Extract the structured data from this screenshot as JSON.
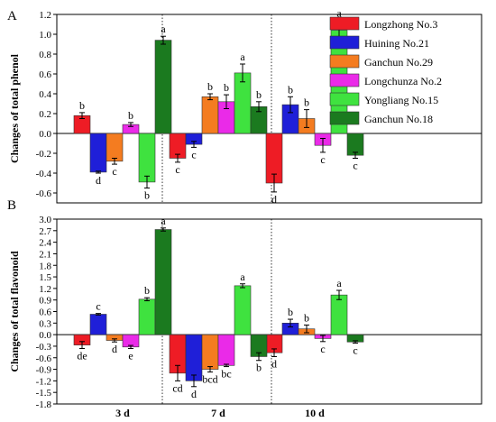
{
  "chart_data": [
    {
      "type": "bar",
      "panel": "A",
      "ylabel": "Changes of total phenol",
      "categories": [
        "3 d",
        "7 d",
        "10 d"
      ],
      "ylim": [
        -0.7,
        1.2
      ],
      "yticks": [
        -0.6,
        -0.4,
        -0.2,
        0.0,
        0.2,
        0.4,
        0.6,
        0.8,
        1.0,
        1.2
      ],
      "ytick_labels": [
        "-0.6",
        "-0.4",
        "-0.2",
        "0.0",
        "0.2",
        "0.4",
        "0.6",
        "0.8",
        "1.0",
        "1.2"
      ],
      "series": [
        {
          "name": "Longzhong No.3",
          "color": "#ee1c25",
          "values": [
            0.18,
            -0.25,
            -0.5
          ],
          "errors": [
            0.03,
            0.04,
            0.09
          ],
          "labels": [
            "b",
            "c",
            "d"
          ]
        },
        {
          "name": "Huining No.21",
          "color": "#1f1fd8",
          "values": [
            -0.39,
            -0.11,
            0.29
          ],
          "errors": [
            0.01,
            0.03,
            0.08
          ],
          "labels": [
            "d",
            "c",
            "b"
          ]
        },
        {
          "name": "Ganchun No.29",
          "color": "#f47c20",
          "values": [
            -0.28,
            0.37,
            0.15
          ],
          "errors": [
            0.03,
            0.03,
            0.09
          ],
          "labels": [
            "c",
            "b",
            "b"
          ]
        },
        {
          "name": "Longchunza No.2",
          "color": "#ea2ae8",
          "values": [
            0.09,
            0.32,
            -0.12
          ],
          "errors": [
            0.02,
            0.07,
            0.07
          ],
          "labels": [
            "b",
            "b",
            "c"
          ]
        },
        {
          "name": "Yongliang No.15",
          "color": "#3fe23f",
          "values": [
            -0.49,
            0.61,
            1.04
          ],
          "errors": [
            0.06,
            0.09,
            0.1
          ],
          "labels": [
            "b",
            "a",
            "a"
          ]
        },
        {
          "name": "Ganchun No.18",
          "color": "#1b7a1f",
          "values": [
            0.94,
            0.27,
            -0.22
          ],
          "errors": [
            0.04,
            0.05,
            0.03
          ],
          "labels": [
            "a",
            "b",
            "c"
          ]
        }
      ]
    },
    {
      "type": "bar",
      "panel": "B",
      "ylabel": "Changes of total flavonoid",
      "categories": [
        "3 d",
        "7 d",
        "10 d"
      ],
      "ylim": [
        -1.8,
        3.0
      ],
      "yticks": [
        -1.8,
        -1.5,
        -1.2,
        -0.9,
        -0.6,
        -0.3,
        0.0,
        0.3,
        0.6,
        0.9,
        1.2,
        1.5,
        1.8,
        2.1,
        2.4,
        2.7,
        3.0
      ],
      "ytick_labels": [
        "-1.8",
        "-1.5",
        "-1.2",
        "-0.9",
        "-0.6",
        "-0.3",
        "0.0",
        "0.3",
        "0.6",
        "0.9",
        "1.2",
        "1.5",
        "1.8",
        "2.1",
        "2.4",
        "2.7",
        "3.0"
      ],
      "series": [
        {
          "name": "Longzhong No.3",
          "color": "#ee1c25",
          "values": [
            -0.27,
            -1.0,
            -0.47
          ],
          "errors": [
            0.09,
            0.2,
            0.1
          ],
          "labels": [
            "de",
            "cd",
            "d"
          ]
        },
        {
          "name": "Huining No.21",
          "color": "#1f1fd8",
          "values": [
            0.53,
            -1.2,
            0.3
          ],
          "errors": [
            0.02,
            0.15,
            0.1
          ],
          "labels": [
            "c",
            "d",
            "b"
          ]
        },
        {
          "name": "Ganchun No.29",
          "color": "#f47c20",
          "values": [
            -0.15,
            -0.9,
            0.15
          ],
          "errors": [
            0.04,
            0.07,
            0.1
          ],
          "labels": [
            "d",
            "bcd",
            "b"
          ]
        },
        {
          "name": "Longchunza No.2",
          "color": "#ea2ae8",
          "values": [
            -0.32,
            -0.8,
            -0.1
          ],
          "errors": [
            0.04,
            0.03,
            0.08
          ],
          "labels": [
            "e",
            "bc",
            "c"
          ]
        },
        {
          "name": "Yongliang No.15",
          "color": "#3fe23f",
          "values": [
            0.92,
            1.27,
            1.03
          ],
          "errors": [
            0.04,
            0.05,
            0.12
          ],
          "labels": [
            "b",
            "a",
            "a"
          ]
        },
        {
          "name": "Ganchun No.18",
          "color": "#1b7a1f",
          "values": [
            2.73,
            -0.57,
            -0.19
          ],
          "errors": [
            0.04,
            0.1,
            0.03
          ],
          "labels": [
            "a",
            "b",
            "c"
          ]
        }
      ]
    }
  ]
}
